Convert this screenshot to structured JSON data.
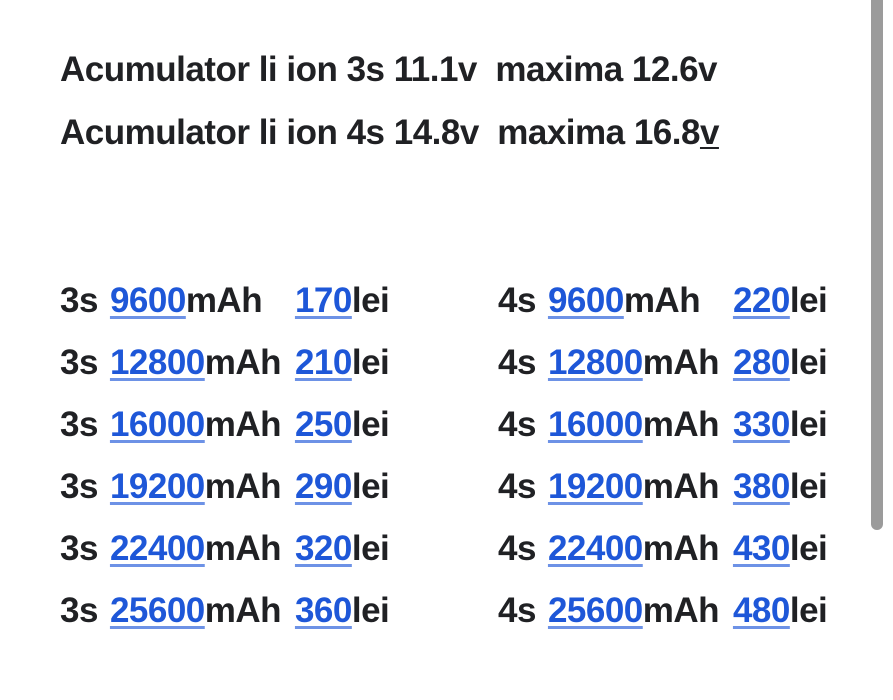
{
  "colors": {
    "text": "#202124",
    "link_blue": "#1e57d8",
    "scrollbar": "#9b9b9b",
    "background": "#ffffff"
  },
  "header": {
    "line1": "Acumulator li ion 3s 11.1v  maxima 12.6v",
    "line2_prefix": "Acumulator li ion 4s 14.8v  maxima 16.8",
    "line2_underlined": "v"
  },
  "price_list": {
    "unit": "mAh",
    "currency": "lei",
    "columns": [
      {
        "series": "3s",
        "items": [
          {
            "capacity": "9600",
            "price": "170"
          },
          {
            "capacity": "12800",
            "price": "210"
          },
          {
            "capacity": "16000",
            "price": "250"
          },
          {
            "capacity": "19200",
            "price": "290"
          },
          {
            "capacity": "22400",
            "price": "320"
          },
          {
            "capacity": "25600",
            "price": "360"
          }
        ]
      },
      {
        "series": "4s",
        "items": [
          {
            "capacity": "9600",
            "price": "220"
          },
          {
            "capacity": "12800",
            "price": "280"
          },
          {
            "capacity": "16000",
            "price": "330"
          },
          {
            "capacity": "19200",
            "price": "380"
          },
          {
            "capacity": "22400",
            "price": "430"
          },
          {
            "capacity": "25600",
            "price": "480"
          }
        ]
      }
    ]
  }
}
